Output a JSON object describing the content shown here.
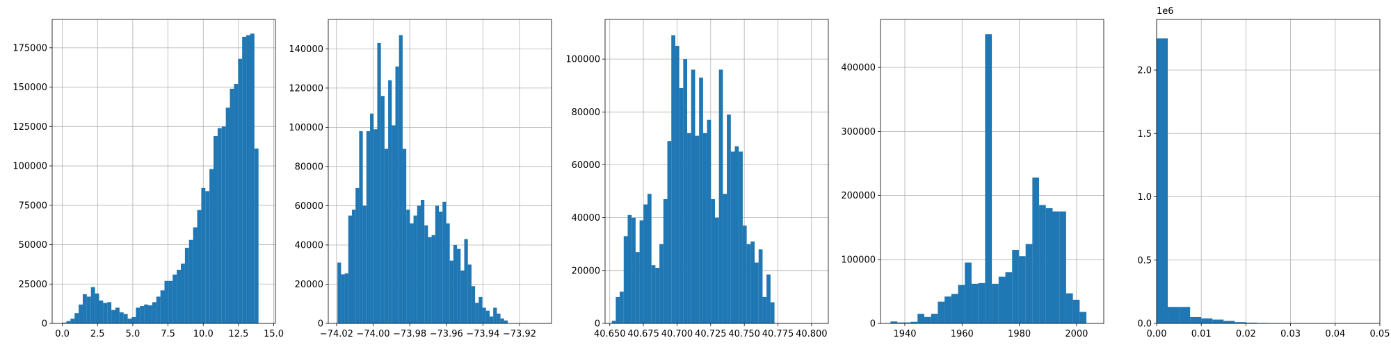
{
  "colors": {
    "bar": "#1f77b4",
    "grid": "#b0b0b0"
  },
  "chart_data": [
    {
      "type": "bar",
      "title": "",
      "xlabel": "",
      "ylabel": "",
      "xlim": [
        -0.72,
        15.12
      ],
      "ylim": [
        0,
        193000
      ],
      "bin_start": 0.0,
      "bin_width": 0.29,
      "values": [
        500,
        1500,
        3000,
        6500,
        12000,
        18500,
        17000,
        23000,
        19000,
        14500,
        13000,
        13500,
        8500,
        10000,
        7000,
        6000,
        3000,
        4000,
        10000,
        11000,
        12000,
        11500,
        13500,
        17000,
        21000,
        27000,
        27000,
        31000,
        34000,
        38000,
        48000,
        53000,
        61000,
        72000,
        86000,
        84000,
        98000,
        119000,
        124000,
        125000,
        137000,
        149000,
        152000,
        168000,
        182000,
        183000,
        184000,
        111000
      ],
      "xticks": [
        0.0,
        2.5,
        5.0,
        7.5,
        10.0,
        12.5,
        15.0
      ],
      "xtick_labels": [
        "0.0",
        "2.5",
        "5.0",
        "7.5",
        "10.0",
        "12.5",
        "15.0"
      ],
      "yticks": [
        0,
        25000,
        50000,
        75000,
        100000,
        125000,
        150000,
        175000
      ],
      "ytick_labels": [
        "0",
        "25000",
        "50000",
        "75000",
        "100000",
        "125000",
        "150000",
        "175000"
      ],
      "grid": true
    },
    {
      "type": "bar",
      "title": "",
      "xlabel": "",
      "ylabel": "",
      "xlim": [
        -74.0245,
        -73.9025
      ],
      "ylim": [
        0,
        155000
      ],
      "bin_start": -74.0195,
      "bin_width": 0.00198,
      "values": [
        31000,
        25000,
        25500,
        55000,
        58000,
        69000,
        98000,
        60000,
        98000,
        107000,
        99000,
        143000,
        116000,
        89000,
        124000,
        101000,
        131000,
        147000,
        89000,
        58000,
        51000,
        55000,
        60000,
        63000,
        50000,
        44000,
        45000,
        60000,
        57000,
        62000,
        51000,
        32000,
        40000,
        38000,
        27000,
        43000,
        30000,
        19000,
        10500,
        13500,
        8000,
        6500,
        3500,
        8000,
        5000,
        2500,
        1500
      ],
      "xticks": [
        -74.02,
        -74.0,
        -73.98,
        -73.96,
        -73.94,
        -73.92
      ],
      "xtick_labels": [
        "−74.02",
        "−74.00",
        "−73.98",
        "−73.96",
        "−73.94",
        "−73.92"
      ],
      "yticks": [
        0,
        20000,
        40000,
        60000,
        80000,
        100000,
        120000,
        140000
      ],
      "ytick_labels": [
        "0",
        "20000",
        "40000",
        "60000",
        "80000",
        "100000",
        "120000",
        "140000"
      ],
      "grid": true
    },
    {
      "type": "bar",
      "title": "",
      "xlabel": "",
      "ylabel": "",
      "xlim": [
        40.6465,
        40.8125
      ],
      "ylim": [
        0,
        115000
      ],
      "bin_start": 40.6515,
      "bin_width": 0.00295,
      "values": [
        1000,
        10000,
        12000,
        33000,
        41000,
        40000,
        27000,
        39000,
        45000,
        49000,
        22000,
        21000,
        30000,
        47000,
        69000,
        109000,
        105000,
        89000,
        100000,
        72000,
        96000,
        71000,
        93000,
        72000,
        77000,
        47000,
        40000,
        96000,
        49000,
        79000,
        65000,
        67000,
        65000,
        37000,
        30000,
        31000,
        23000,
        28000,
        10000,
        18500,
        8000
      ],
      "xticks": [
        40.65,
        40.675,
        40.7,
        40.725,
        40.75,
        40.775,
        40.8
      ],
      "xtick_labels": [
        "40.650",
        "40.675",
        "40.700",
        "40.725",
        "40.750",
        "40.775",
        "40.800"
      ],
      "yticks": [
        0,
        20000,
        40000,
        60000,
        80000,
        100000
      ],
      "ytick_labels": [
        "0",
        "20000",
        "40000",
        "60000",
        "80000",
        "100000"
      ],
      "grid": true
    },
    {
      "type": "bar",
      "title": "",
      "xlabel": "",
      "ylabel": "",
      "xlim": [
        1931.5,
        2009.5
      ],
      "ylim": [
        0,
        475000
      ],
      "bin_start": 1935,
      "bin_width": 2.36,
      "values": [
        3000,
        1500,
        1500,
        2500,
        15000,
        10000,
        15000,
        34000,
        42000,
        46000,
        60000,
        95000,
        62000,
        63000,
        452000,
        62000,
        73000,
        80000,
        115000,
        105000,
        124000,
        228000,
        185000,
        180000,
        175000,
        175000,
        47000,
        37000,
        18000
      ],
      "xticks": [
        1940,
        1960,
        1980,
        2000
      ],
      "xtick_labels": [
        "1940",
        "1960",
        "1980",
        "2000"
      ],
      "yticks": [
        0,
        100000,
        200000,
        300000,
        400000
      ],
      "ytick_labels": [
        "0",
        "100000",
        "200000",
        "300000",
        "400000"
      ],
      "grid": true
    },
    {
      "type": "bar",
      "title": "",
      "xlabel": "",
      "ylabel": "",
      "offset_text": "1e6",
      "xlim": [
        0,
        0.05
      ],
      "ylim": [
        0,
        2.4
      ],
      "bin_start": 0.0,
      "bin_width": 0.0025,
      "values": [
        2.25,
        0.13,
        0.13,
        0.05,
        0.04,
        0.03,
        0.02,
        0.01,
        0.006,
        0.004,
        0.003,
        0.002,
        0.002,
        0.001,
        0.001,
        0.001,
        0.001,
        0.001,
        0.001,
        0.001
      ],
      "xticks": [
        0.0,
        0.01,
        0.02,
        0.03,
        0.04,
        0.05
      ],
      "xtick_labels": [
        "0.00",
        "0.01",
        "0.02",
        "0.03",
        "0.04",
        "0.05"
      ],
      "yticks": [
        0,
        0.5,
        1.0,
        1.5,
        2.0
      ],
      "ytick_labels": [
        "0.0",
        "0.5",
        "1.0",
        "1.5",
        "2.0"
      ],
      "grid": true
    }
  ]
}
